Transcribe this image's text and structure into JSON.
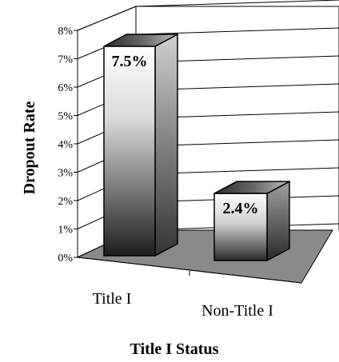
{
  "chart_data": {
    "type": "bar",
    "style": "3d",
    "categories": [
      "Title I",
      "Non-Title I"
    ],
    "values": [
      7.5,
      2.4
    ],
    "data_labels": [
      "7.5%",
      "2.4%"
    ],
    "xlabel": "Title I Status",
    "ylabel": "Dropout Rate",
    "ylim": [
      0,
      8
    ],
    "yticks": [
      "0%",
      "1%",
      "2%",
      "3%",
      "4%",
      "5%",
      "6%",
      "7%",
      "8%"
    ],
    "grid": true,
    "legend": "none",
    "colors": {
      "floor": "#8a8a8a",
      "bar_dark": "#1a1a1a",
      "bar_light": "#ffffff",
      "grid": "#000000"
    }
  }
}
